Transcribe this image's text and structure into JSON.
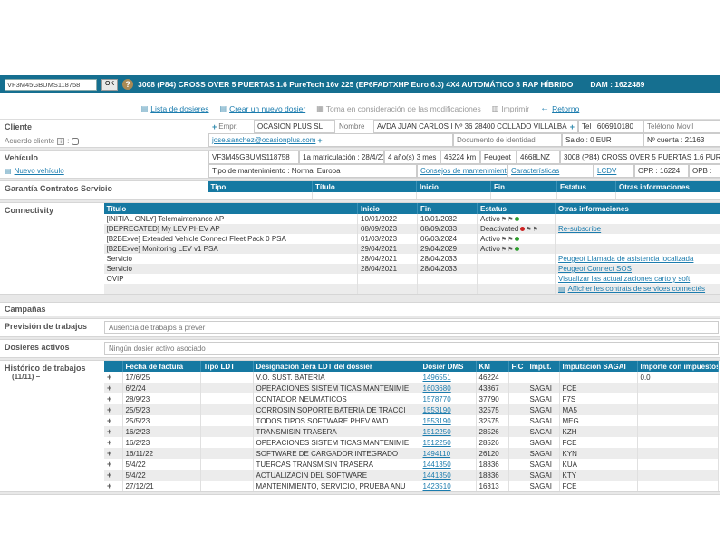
{
  "icons": {
    "plus": "+",
    "help": "?",
    "doc": "▤",
    "save": "▦",
    "print": "▥",
    "back": "←",
    "flag": "⚑",
    "info": "i"
  },
  "vin_bar": {
    "vin": "VF3M45GBUMS118758",
    "ok_label": "OK",
    "title": "3008 (P84) CROSS OVER 5 PUERTAS 1.6 PureTech 16v 225 (EP6FADTXHP Euro 6.3) 4X4 AUTOMÁTICO 8 RAP HÍBRIDO",
    "dam": "DAM : 1622489"
  },
  "toolbar": {
    "lista": "Lista de dosieres",
    "crear": "Crear un nuevo dosier",
    "toma": "Toma en consideración de las modificaciones",
    "imprimir": "Imprimir",
    "retorno": "Retorno"
  },
  "cliente": {
    "section_label": "Cliente",
    "acuerdo_label": "Acuerdo cliente",
    "acuerdo_sep": ":",
    "empr_label": "Empr.",
    "empr_value": "OCASION PLUS SL",
    "nombre_label": "Nombre",
    "direccion": "AVDA JUAN CARLOS I Nº 36 28400 COLLADO VILLALBA (MADRID) COLLADO VILLAL",
    "tel": "Tel :  606910180",
    "telefono_movil": "Teléfono Movil",
    "email": "jose.sanchez@ocasionplus.com",
    "doc_identidad": "Documento de identidad",
    "saldo": "Saldo :  0 EUR",
    "cuenta": "Nº cuenta : 21163"
  },
  "vehiculo": {
    "section_label": "Vehículo",
    "nuevo_link": "Nuevo vehículo",
    "vin": "VF3M45GBUMS118758",
    "matriculacion": "1a matriculación :  28/4/21",
    "edad": "4 año(s) 3 mes",
    "km": "46224 km",
    "marca": "Peugeot",
    "matricula": "4668LNZ",
    "modelo": "3008 (P84) CROSS OVER 5 PUERTAS 1.6 PURETECH 16V 225 (EP6FADTXHP EURO 6.3) 4X4 AUTOMÁTICO 8 RAP HÍBRIDO",
    "tipo_mantenimiento": "Tipo de mantenimiento :  Normal Europa",
    "consejos_link": "Consejos de mantenimiento",
    "caracteristicas_link": "Características",
    "lcdv_link": "LCDV",
    "opr": "OPR :  16224",
    "opb": "OPB :"
  },
  "garantia": {
    "section_label": "Garantía Contratos Servicio",
    "columns": [
      "Tipo",
      "Título",
      "Inicio",
      "Fin",
      "Estatus",
      "Otras informaciones"
    ]
  },
  "connectivity": {
    "section_label": "Connectivity",
    "columns": [
      "Título",
      "Inicio",
      "Fin",
      "Estatus",
      "Otras informaciones"
    ],
    "rows": [
      {
        "titulo": "[INITIAL ONLY] Telemaintenance AP",
        "inicio": "10/01/2022",
        "fin": "10/01/2032",
        "estatus": "Activo",
        "status": "active",
        "otras": "",
        "otras_is_link": false,
        "otras_icon": false
      },
      {
        "titulo": "[DEPRECATED] My LEV PHEV AP",
        "inicio": "08/09/2023",
        "fin": "08/09/2033",
        "estatus": "Deactivated",
        "status": "deactivated",
        "otras": "Re-subscribe",
        "otras_is_link": true,
        "otras_icon": false
      },
      {
        "titulo": "[B2BExve] Extended Vehicle Connect Fleet Pack 0 PSA",
        "inicio": "01/03/2023",
        "fin": "06/03/2024",
        "estatus": "Activo",
        "status": "active",
        "otras": "",
        "otras_is_link": false,
        "otras_icon": false
      },
      {
        "titulo": "[B2BExve] Monitoring LEV v1 PSA",
        "inicio": "29/04/2021",
        "fin": "29/04/2029",
        "estatus": "Activo",
        "status": "active",
        "otras": "",
        "otras_is_link": false,
        "otras_icon": false
      },
      {
        "titulo": "Servicio",
        "inicio": "28/04/2021",
        "fin": "28/04/2033",
        "estatus": "",
        "status": "",
        "otras": "Peugeot Llamada de asistencia localizada",
        "otras_is_link": true,
        "otras_icon": false
      },
      {
        "titulo": "Servicio",
        "inicio": "28/04/2021",
        "fin": "28/04/2033",
        "estatus": "",
        "status": "",
        "otras": "Peugeot Connect SOS",
        "otras_is_link": true,
        "otras_icon": false
      },
      {
        "titulo": "OVIP",
        "inicio": "",
        "fin": "",
        "estatus": "",
        "status": "",
        "otras": "Visualizar las actualizaciones carto y soft",
        "otras_is_link": true,
        "otras_icon": false
      },
      {
        "titulo": "",
        "inicio": "",
        "fin": "",
        "estatus": "",
        "status": "",
        "otras": "Afficher les contrats de services connectés",
        "otras_is_link": true,
        "otras_icon": true
      }
    ]
  },
  "campanas": {
    "section_label": "Campañas"
  },
  "prevision": {
    "label": "Previsión de trabajos",
    "value": "Ausencia de trabajos a prever"
  },
  "dosieres": {
    "label": "Dosieres activos",
    "value": "Ningún dosier activo asociado"
  },
  "historico": {
    "label": "Histórico de trabajos",
    "count": "(11/11) –",
    "columns": [
      "",
      "Fecha de factura",
      "Tipo LDT",
      "Designación 1era LDT del dossier",
      "Dosier DMS",
      "KM",
      "FIC",
      "Imput.",
      "Imputación SAGAI",
      "Importe con impuestos"
    ],
    "rows": [
      {
        "fecha": "17/6/25",
        "tipo": "",
        "designacion": "V.O. SUST. BATERIA",
        "dosier": "1496551",
        "km": "46224",
        "fic": "",
        "imput": "",
        "sagai": "",
        "importe": "0.0"
      },
      {
        "fecha": "6/2/24",
        "tipo": "",
        "designacion": "OPERACIONES SISTEM TICAS MANTENIMIE",
        "dosier": "1603680",
        "km": "43867",
        "fic": "",
        "imput": "SAGAI",
        "sagai": "FCE",
        "importe": ""
      },
      {
        "fecha": "28/9/23",
        "tipo": "",
        "designacion": "CONTADOR NEUMATICOS",
        "dosier": "1578770",
        "km": "37790",
        "fic": "",
        "imput": "SAGAI",
        "sagai": "F7S",
        "importe": ""
      },
      {
        "fecha": "25/5/23",
        "tipo": "",
        "designacion": "CORROSIN SOPORTE BATERIA DE TRACCI",
        "dosier": "1553190",
        "km": "32575",
        "fic": "",
        "imput": "SAGAI",
        "sagai": "MA5",
        "importe": ""
      },
      {
        "fecha": "25/5/23",
        "tipo": "",
        "designacion": "TODOS TIPOS SOFTWARE PHEV AWD",
        "dosier": "1553190",
        "km": "32575",
        "fic": "",
        "imput": "SAGAI",
        "sagai": "MEG",
        "importe": ""
      },
      {
        "fecha": "16/2/23",
        "tipo": "",
        "designacion": "TRANSMISIN TRASERA",
        "dosier": "1512250",
        "km": "28526",
        "fic": "",
        "imput": "SAGAI",
        "sagai": "KZH",
        "importe": ""
      },
      {
        "fecha": "16/2/23",
        "tipo": "",
        "designacion": "OPERACIONES SISTEM TICAS MANTENIMIE",
        "dosier": "1512250",
        "km": "28526",
        "fic": "",
        "imput": "SAGAI",
        "sagai": "FCE",
        "importe": ""
      },
      {
        "fecha": "16/11/22",
        "tipo": "",
        "designacion": "SOFTWARE DE CARGADOR INTEGRADO",
        "dosier": "1494110",
        "km": "26120",
        "fic": "",
        "imput": "SAGAI",
        "sagai": "KYN",
        "importe": ""
      },
      {
        "fecha": "5/4/22",
        "tipo": "",
        "designacion": "TUERCAS TRANSMISIN TRASERA",
        "dosier": "1441350",
        "km": "18836",
        "fic": "",
        "imput": "SAGAI",
        "sagai": "KUA",
        "importe": ""
      },
      {
        "fecha": "5/4/22",
        "tipo": "",
        "designacion": "ACTUALIZACIN DEL SOFTWARE",
        "dosier": "1441350",
        "km": "18836",
        "fic": "",
        "imput": "SAGAI",
        "sagai": "KTY",
        "importe": ""
      },
      {
        "fecha": "27/12/21",
        "tipo": "",
        "designacion": "MANTENIMIENTO, SERVICIO, PRUEBA ANU",
        "dosier": "1423510",
        "km": "16313",
        "fic": "",
        "imput": "SAGAI",
        "sagai": "FCE",
        "importe": ""
      }
    ]
  },
  "colors": {
    "header_teal": "#156f90",
    "table_header": "#1679a2",
    "link": "#1b7cae",
    "active_dot": "#2e9e2e",
    "inactive_dot": "#cc2222"
  }
}
